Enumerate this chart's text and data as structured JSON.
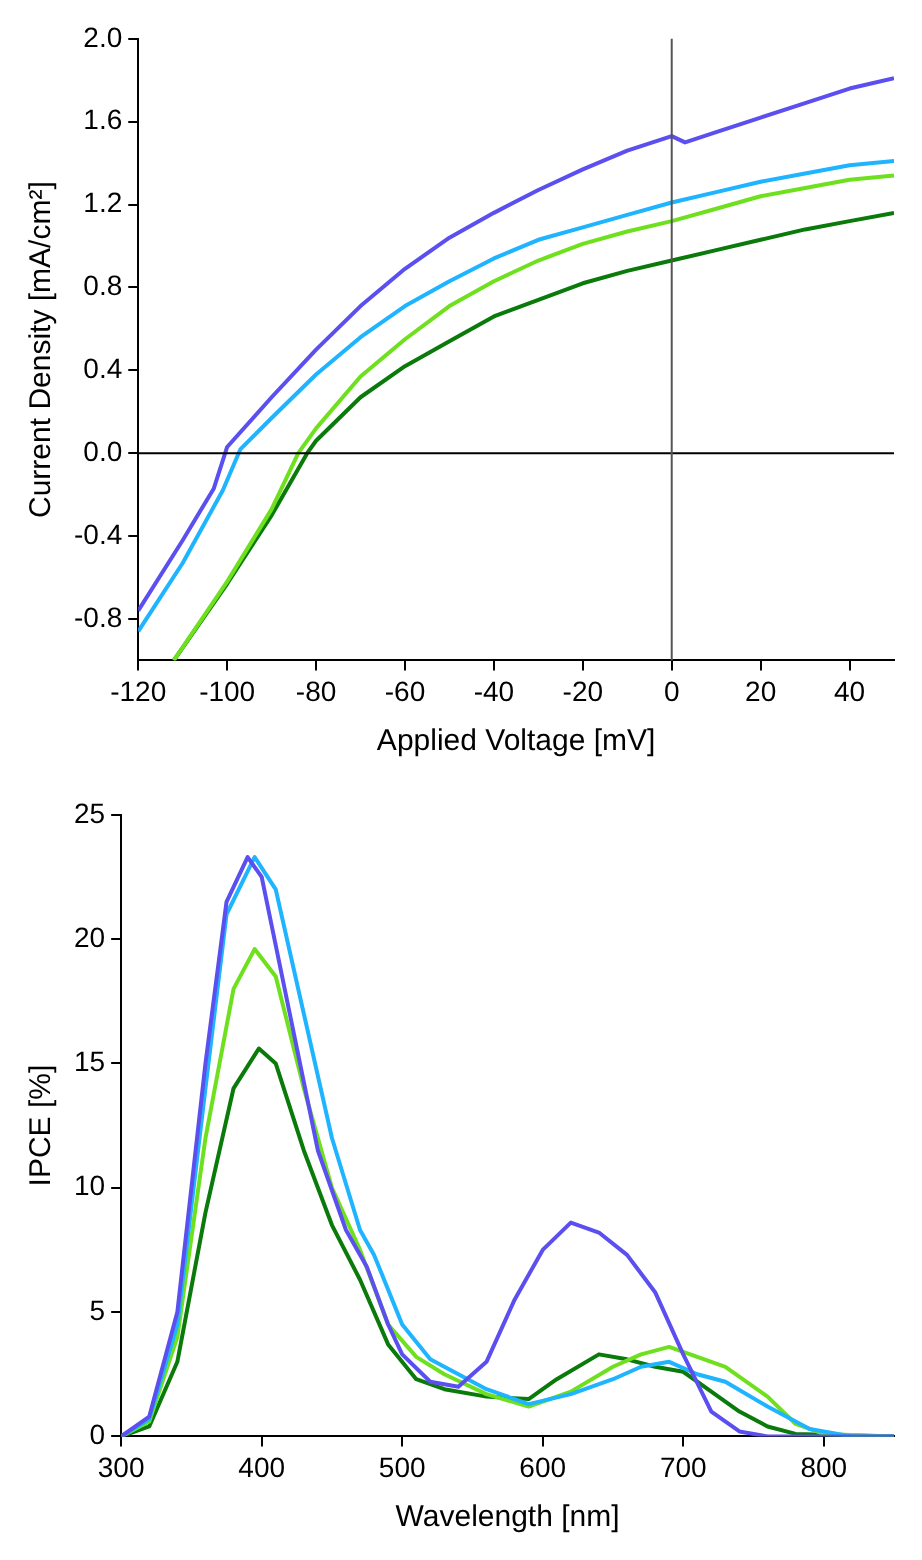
{
  "chart_data": [
    {
      "type": "line",
      "xlabel": "Applied Voltage [mV]",
      "ylabel": "Current Density [mA/cm²]",
      "xlim": [
        -120,
        50
      ],
      "xticks": [
        -120,
        -100,
        -80,
        -60,
        -40,
        -20,
        0,
        20,
        40
      ],
      "ylim": [
        -1.0,
        2.0
      ],
      "yticks": [
        {
          "value": -0.8,
          "label": "-0.8"
        },
        {
          "value": -0.4,
          "label": "-0.4"
        },
        {
          "value": 0,
          "label": "0.0"
        },
        {
          "value": 0.4,
          "label": "0.4"
        },
        {
          "value": 0.8,
          "label": "0.8"
        },
        {
          "value": 1.2,
          "label": "1.2"
        },
        {
          "value": 1.6,
          "label": "1.6"
        },
        {
          "value": 2.0,
          "label": "2.0"
        }
      ],
      "grid": false,
      "legend": false,
      "marker": "none",
      "line_style": "solid",
      "ref_lines": [
        {
          "axis": "y",
          "value": 0,
          "color": "#000000"
        },
        {
          "axis": "x",
          "value": 0,
          "color": "#555555"
        }
      ],
      "series": [
        {
          "color": "#5b4ff0",
          "x": [
            -120,
            -110,
            -103,
            -100,
            -90,
            -80,
            -70,
            -60,
            -50,
            -40,
            -30,
            -20,
            -10,
            0,
            3,
            10,
            20,
            30,
            40,
            50
          ],
          "values": [
            -0.76,
            -0.42,
            -0.17,
            0.03,
            0.27,
            0.5,
            0.71,
            0.89,
            1.04,
            1.16,
            1.27,
            1.37,
            1.46,
            1.53,
            1.5,
            1.55,
            1.62,
            1.69,
            1.76,
            1.81
          ]
        },
        {
          "color": "#1eb4ff",
          "x": [
            -120,
            -110,
            -101,
            -97,
            -90,
            -80,
            -70,
            -60,
            -50,
            -40,
            -30,
            -20,
            -10,
            0,
            10,
            20,
            30,
            40,
            50
          ],
          "values": [
            -0.86,
            -0.53,
            -0.18,
            0.02,
            0.17,
            0.38,
            0.56,
            0.71,
            0.83,
            0.94,
            1.03,
            1.09,
            1.15,
            1.21,
            1.26,
            1.31,
            1.35,
            1.39,
            1.41
          ]
        },
        {
          "color": "#6ee01e",
          "x": [
            -112,
            -100,
            -90,
            -84,
            -80,
            -70,
            -60,
            -50,
            -40,
            -30,
            -20,
            -10,
            0,
            10,
            20,
            30,
            40,
            50
          ],
          "values": [
            -1.0,
            -0.62,
            -0.27,
            0.0,
            0.12,
            0.37,
            0.55,
            0.71,
            0.83,
            0.93,
            1.01,
            1.07,
            1.12,
            1.18,
            1.24,
            1.28,
            1.32,
            1.34
          ]
        },
        {
          "color": "#0a7a0a",
          "x": [
            -112,
            -100,
            -90,
            -82,
            -80,
            -70,
            -60,
            -50,
            -40,
            -30,
            -20,
            -10,
            0,
            10,
            20,
            30,
            40,
            50
          ],
          "values": [
            -1.0,
            -0.63,
            -0.3,
            0.0,
            0.06,
            0.27,
            0.42,
            0.54,
            0.66,
            0.74,
            0.82,
            0.88,
            0.93,
            0.98,
            1.03,
            1.08,
            1.12,
            1.16
          ]
        }
      ]
    },
    {
      "type": "line",
      "xlabel": "Wavelength [nm]",
      "ylabel": "IPCE [%]",
      "xlim": [
        300,
        850
      ],
      "xticks": [
        300,
        400,
        500,
        600,
        700,
        800
      ],
      "ylim": [
        0,
        25
      ],
      "yticks": [
        0,
        5,
        10,
        15,
        20,
        25
      ],
      "grid": false,
      "legend": false,
      "marker": "none",
      "line_style": "solid",
      "series": [
        {
          "color": "#5b4ff0",
          "x": [
            300,
            320,
            340,
            360,
            375,
            390,
            400,
            420,
            440,
            460,
            475,
            490,
            500,
            520,
            540,
            560,
            580,
            600,
            620,
            640,
            660,
            680,
            700,
            720,
            740,
            760,
            850
          ],
          "values": [
            0,
            0.8,
            5,
            15,
            21.5,
            23.3,
            22.5,
            17,
            11.5,
            8.3,
            6.8,
            4.5,
            3.3,
            2.2,
            2.0,
            3.0,
            5.5,
            7.5,
            8.6,
            8.2,
            7.3,
            5.8,
            3.3,
            1.0,
            0.2,
            0,
            0
          ]
        },
        {
          "color": "#1eb4ff",
          "x": [
            300,
            320,
            340,
            360,
            375,
            395,
            410,
            430,
            450,
            470,
            480,
            500,
            520,
            540,
            560,
            590,
            620,
            650,
            670,
            690,
            710,
            730,
            760,
            790,
            820,
            850
          ],
          "values": [
            0,
            0.7,
            4.5,
            14,
            21,
            23.3,
            22,
            17,
            12,
            8.3,
            7.3,
            4.5,
            3.1,
            2.5,
            1.9,
            1.3,
            1.7,
            2.3,
            2.8,
            3.0,
            2.5,
            2.2,
            1.2,
            0.3,
            0,
            0
          ]
        },
        {
          "color": "#6ee01e",
          "x": [
            300,
            320,
            340,
            360,
            380,
            395,
            410,
            430,
            450,
            470,
            490,
            510,
            530,
            560,
            590,
            620,
            650,
            670,
            690,
            710,
            730,
            760,
            780,
            800,
            850
          ],
          "values": [
            0,
            0.6,
            4,
            12,
            18,
            19.6,
            18.5,
            14,
            10,
            7.5,
            4.5,
            3.2,
            2.5,
            1.7,
            1.2,
            1.8,
            2.8,
            3.3,
            3.6,
            3.2,
            2.8,
            1.6,
            0.5,
            0.1,
            0
          ]
        },
        {
          "color": "#0a7a0a",
          "x": [
            300,
            320,
            340,
            360,
            380,
            398,
            410,
            430,
            450,
            470,
            490,
            510,
            530,
            560,
            590,
            610,
            640,
            660,
            680,
            700,
            720,
            740,
            760,
            780,
            850
          ],
          "values": [
            0,
            0.4,
            3,
            9,
            14,
            15.6,
            15,
            11.5,
            8.5,
            6.3,
            3.7,
            2.3,
            1.9,
            1.6,
            1.5,
            2.3,
            3.3,
            3.1,
            2.8,
            2.6,
            1.8,
            1.0,
            0.4,
            0.1,
            0
          ]
        }
      ]
    }
  ]
}
